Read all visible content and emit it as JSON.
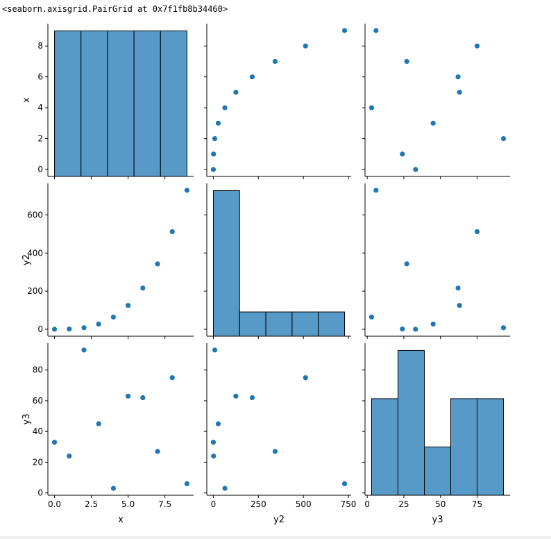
{
  "output_text": "<seaborn.axisgrid.PairGrid at 0x7f1fb8b34460>",
  "colors": {
    "series": "#1f77b4",
    "hist_fill": "#5799c7",
    "hist_edge": "#000000",
    "axis": "#000000"
  },
  "chart_data": {
    "type": "pairgrid",
    "variables": [
      "x",
      "y2",
      "y3"
    ],
    "data": {
      "x": [
        0,
        1,
        2,
        3,
        4,
        5,
        6,
        7,
        8,
        9
      ],
      "y2": [
        0,
        1,
        8,
        27,
        64,
        125,
        216,
        343,
        512,
        729
      ],
      "y3": [
        33,
        24,
        93,
        45,
        3,
        63,
        62,
        27,
        75,
        6
      ]
    },
    "axes": {
      "x": {
        "lim": [
          -0.45,
          9.45
        ],
        "ticks": [
          0,
          2.5,
          5,
          7.5
        ],
        "tick_labels": [
          "0.0",
          "2.5",
          "5.0",
          "7.5"
        ],
        "row_ticks": [
          0,
          2,
          4,
          6,
          8
        ],
        "row_tick_labels": [
          "0",
          "2",
          "4",
          "6",
          "8"
        ]
      },
      "y2": {
        "lim": [
          -36.45,
          765.45
        ],
        "ticks": [
          0,
          250,
          500,
          750
        ],
        "tick_labels": [
          "0",
          "250",
          "500",
          "750"
        ],
        "row_ticks": [
          0,
          200,
          400,
          600
        ],
        "row_tick_labels": [
          "0",
          "200",
          "400",
          "600"
        ]
      },
      "y3": {
        "lim": [
          -1.5,
          97.5
        ],
        "ticks": [
          0,
          25,
          50,
          75
        ],
        "tick_labels": [
          "0",
          "25",
          "50",
          "75"
        ],
        "row_ticks": [
          0,
          20,
          40,
          60,
          80
        ],
        "row_tick_labels": [
          "0",
          "20",
          "40",
          "60",
          "80"
        ]
      }
    },
    "histograms": {
      "x": {
        "bins": [
          0,
          1.8,
          3.6,
          5.4,
          7.2,
          9.0
        ],
        "counts": [
          2,
          2,
          2,
          2,
          2
        ]
      },
      "y2": {
        "bins": [
          0,
          145.8,
          291.6,
          437.4,
          583.2,
          729
        ],
        "counts": [
          6,
          1,
          1,
          1,
          1
        ]
      },
      "y3": {
        "bins": [
          3,
          21,
          39,
          57,
          75,
          93
        ],
        "counts": [
          2,
          3,
          1,
          2,
          2
        ]
      }
    }
  }
}
